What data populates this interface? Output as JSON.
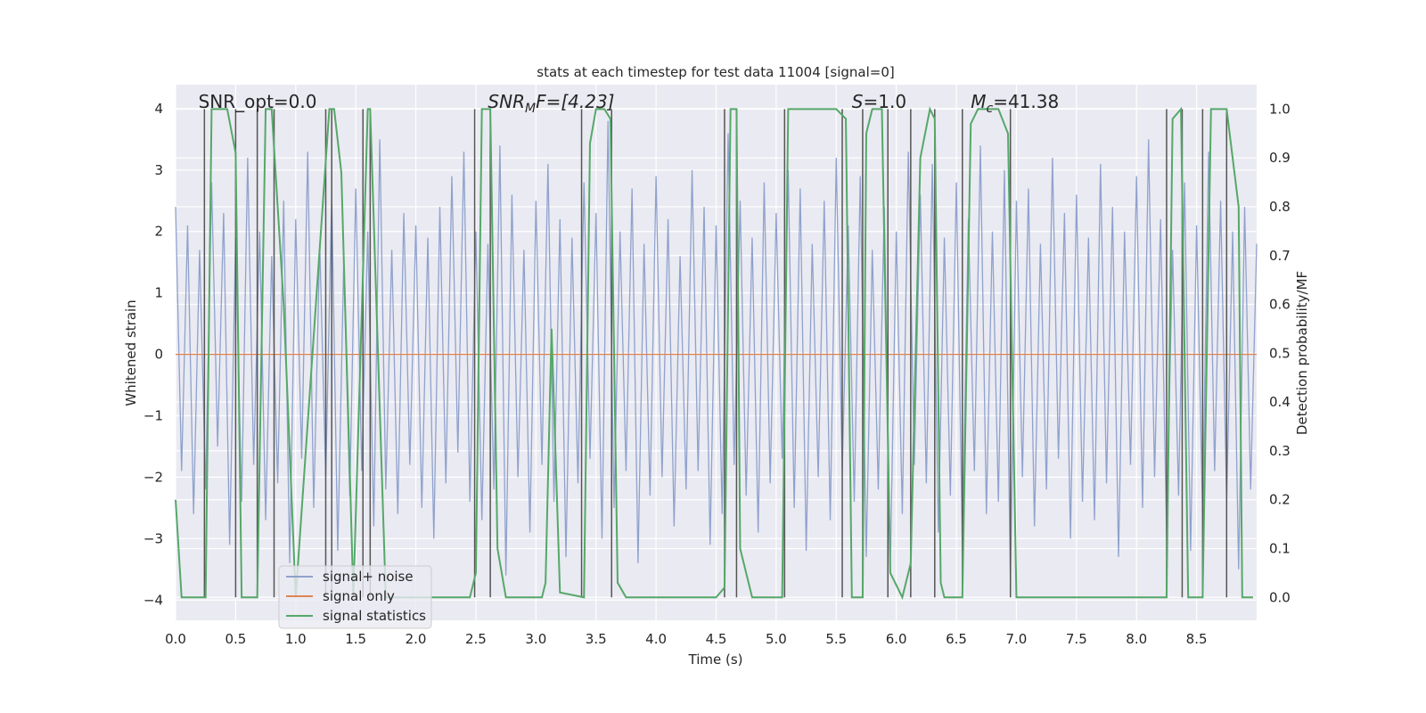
{
  "chart_data": {
    "type": "line",
    "title": "stats at each timestep for test data 11004 [signal=0]",
    "xlabel": "Time (s)",
    "ylabel": "Whitened strain",
    "y2label": "Detection probability/MF",
    "annotations": [
      {
        "text": "SNR_opt=0.0"
      },
      {
        "text": "SNR",
        "sub": "M",
        "rest": "F=[4.23]"
      },
      {
        "text": "S",
        "rest": "=1.0"
      },
      {
        "text": "M",
        "sub": "c",
        "rest": "=41.38"
      }
    ],
    "xlim": [
      0,
      9
    ],
    "ylim": [
      -4.33,
      4.39
    ],
    "y2lim": [
      -0.047,
      1.05
    ],
    "xticks": [
      {
        "value": 0,
        "label": "0.0"
      },
      0.5,
      {
        "value": 1,
        "label": "1.0"
      },
      1.5,
      {
        "value": 2,
        "label": "2.0"
      },
      2.5,
      {
        "value": 3,
        "label": "3.0"
      },
      3.5,
      {
        "value": 4,
        "label": "4.0"
      },
      4.5,
      {
        "value": 5,
        "label": "5.0"
      },
      5.5,
      {
        "value": 6,
        "label": "6.0"
      },
      6.5,
      {
        "value": 7,
        "label": "7.0"
      },
      7.5,
      {
        "value": 8,
        "label": "8.0"
      },
      8.5
    ],
    "yticks": [
      {
        "value": -4,
        "label": "−4"
      },
      {
        "value": -3,
        "label": "−3"
      },
      {
        "value": -2,
        "label": "−2"
      },
      {
        "value": -1,
        "label": "−1"
      },
      0,
      1,
      2,
      3,
      4
    ],
    "y2ticks": [
      {
        "value": 0,
        "label": "0.0"
      },
      0.1,
      0.2,
      0.3,
      0.4,
      0.5,
      0.6,
      0.7,
      0.8,
      0.9,
      {
        "value": 1,
        "label": "1.0"
      }
    ],
    "grid": true,
    "legend": "lower left",
    "series": [
      {
        "name": "signal+ noise",
        "color": "#8fa2cc",
        "x": [
          0,
          0.05,
          0.1,
          0.15,
          0.2,
          0.25,
          0.3,
          0.35,
          0.4,
          0.45,
          0.5,
          0.55,
          0.6,
          0.65,
          0.7,
          0.75,
          0.8,
          0.85,
          0.9,
          0.95,
          1,
          1.05,
          1.1,
          1.15,
          1.2,
          1.25,
          1.3,
          1.35,
          1.4,
          1.45,
          1.5,
          1.55,
          1.6,
          1.65,
          1.7,
          1.75,
          1.8,
          1.85,
          1.9,
          1.95,
          2,
          2.05,
          2.1,
          2.15,
          2.2,
          2.25,
          2.3,
          2.35,
          2.4,
          2.45,
          2.5,
          2.55,
          2.6,
          2.65,
          2.7,
          2.75,
          2.8,
          2.85,
          2.9,
          2.95,
          3,
          3.05,
          3.1,
          3.15,
          3.2,
          3.25,
          3.3,
          3.35,
          3.4,
          3.45,
          3.5,
          3.55,
          3.6,
          3.65,
          3.7,
          3.75,
          3.8,
          3.85,
          3.9,
          3.95,
          4,
          4.05,
          4.1,
          4.15,
          4.2,
          4.25,
          4.3,
          4.35,
          4.4,
          4.45,
          4.5,
          4.55,
          4.6,
          4.65,
          4.7,
          4.75,
          4.8,
          4.85,
          4.9,
          4.95,
          5,
          5.05,
          5.1,
          5.15,
          5.2,
          5.25,
          5.3,
          5.35,
          5.4,
          5.45,
          5.5,
          5.55,
          5.6,
          5.65,
          5.7,
          5.75,
          5.8,
          5.85,
          5.9,
          5.95,
          6,
          6.05,
          6.1,
          6.15,
          6.2,
          6.25,
          6.3,
          6.35,
          6.4,
          6.45,
          6.5,
          6.55,
          6.6,
          6.65,
          6.7,
          6.75,
          6.8,
          6.85,
          6.9,
          6.95,
          7,
          7.05,
          7.1,
          7.15,
          7.2,
          7.25,
          7.3,
          7.35,
          7.4,
          7.45,
          7.5,
          7.55,
          7.6,
          7.65,
          7.7,
          7.75,
          7.8,
          7.85,
          7.9,
          7.95,
          8,
          8.05,
          8.1,
          8.15,
          8.2,
          8.25,
          8.3,
          8.35,
          8.4,
          8.45,
          8.5,
          8.55,
          8.6,
          8.65,
          8.7,
          8.75,
          8.8,
          8.85,
          8.9,
          8.95,
          9
        ],
        "values": [
          2.4,
          -1.9,
          2.1,
          -2.6,
          1.7,
          -2.2,
          2.8,
          -1.5,
          2.3,
          -3.1,
          1.9,
          -2.4,
          3.2,
          -1.8,
          2.0,
          -2.7,
          1.6,
          -2.1,
          2.5,
          -3.4,
          2.2,
          -1.7,
          3.3,
          -2.5,
          1.8,
          -2.0,
          2.6,
          -3.2,
          1.5,
          -2.3,
          2.7,
          -1.9,
          2.0,
          -2.8,
          3.5,
          -2.2,
          1.7,
          -2.6,
          2.3,
          -1.8,
          2.1,
          -2.5,
          1.9,
          -3.0,
          2.4,
          -2.1,
          2.9,
          -1.6,
          3.3,
          -2.4,
          2.0,
          -2.7,
          1.8,
          -2.2,
          3.4,
          -3.6,
          2.6,
          -2.0,
          1.7,
          -2.9,
          2.5,
          -1.8,
          3.1,
          -2.4,
          2.2,
          -3.3,
          1.9,
          -2.1,
          2.8,
          -1.7,
          2.3,
          -3.0,
          3.8,
          -2.5,
          2.0,
          -1.9,
          2.7,
          -3.4,
          1.8,
          -2.3,
          2.9,
          -2.0,
          2.2,
          -2.8,
          1.6,
          -2.2,
          3.0,
          -1.9,
          2.4,
          -3.1,
          2.1,
          -2.6,
          3.6,
          -1.8,
          2.5,
          -2.3,
          1.9,
          -2.9,
          2.8,
          -2.1,
          2.3,
          -1.7,
          3.0,
          -2.5,
          2.7,
          -3.2,
          1.8,
          -2.0,
          2.5,
          -2.7,
          3.2,
          -1.9,
          2.1,
          -2.4,
          2.9,
          -3.3,
          1.7,
          -2.2,
          2.4,
          -3.5,
          2.0,
          -2.6,
          3.3,
          -1.8,
          2.6,
          -2.1,
          3.1,
          -2.9,
          1.9,
          -2.3,
          2.8,
          -3.1,
          2.2,
          -1.9,
          3.4,
          -2.6,
          2.0,
          -2.4,
          3.0,
          -3.7,
          2.5,
          -2.0,
          2.7,
          -2.8,
          1.8,
          -2.2,
          3.2,
          -1.7,
          2.3,
          -3.0,
          2.6,
          -2.4,
          1.9,
          -2.7,
          3.1,
          -2.1,
          2.4,
          -3.3,
          2.0,
          -1.8,
          2.9,
          -2.5,
          3.5,
          -2.0,
          2.2,
          -2.9,
          1.7,
          -2.3,
          2.8,
          -3.2,
          2.1,
          -2.6,
          3.3,
          -1.9,
          2.5,
          -2.4,
          2.0,
          -3.5,
          2.4,
          -2.2,
          1.8
        ]
      },
      {
        "name": "signal only",
        "color": "#dd8452",
        "x": [
          0,
          9
        ],
        "values": [
          0,
          0
        ]
      },
      {
        "name": "signal statistics",
        "color": "#55a868",
        "axis": "y2",
        "x": [
          0,
          0.05,
          0.25,
          0.3,
          0.43,
          0.5,
          0.55,
          0.68,
          0.75,
          0.8,
          0.9,
          1.0,
          1.28,
          1.32,
          1.38,
          1.48,
          1.6,
          1.62,
          1.75,
          2.45,
          2.5,
          2.55,
          2.62,
          2.68,
          2.75,
          3.05,
          3.08,
          3.13,
          3.2,
          3.4,
          3.45,
          3.5,
          3.57,
          3.62,
          3.68,
          3.75,
          4.5,
          4.57,
          4.62,
          4.67,
          4.7,
          4.8,
          5.05,
          5.1,
          5.5,
          5.58,
          5.63,
          5.72,
          5.75,
          5.8,
          5.88,
          5.95,
          6.05,
          6.12,
          6.2,
          6.28,
          6.32,
          6.37,
          6.4,
          6.55,
          6.62,
          6.68,
          6.85,
          6.93,
          7.0,
          8.25,
          8.3,
          8.37,
          8.43,
          8.55,
          8.62,
          8.75,
          8.85,
          8.88,
          8.97
        ],
        "values": [
          0.2,
          0.0,
          0.0,
          1.0,
          1.0,
          0.91,
          0.0,
          0.0,
          1.0,
          1.0,
          0.6,
          0.0,
          1.0,
          1.0,
          0.87,
          0.0,
          1.0,
          1.0,
          0.0,
          0.0,
          0.05,
          1.0,
          1.0,
          0.1,
          0.0,
          0.0,
          0.03,
          0.55,
          0.01,
          0.0,
          0.93,
          1.0,
          1.0,
          0.98,
          0.03,
          0.0,
          0.0,
          0.02,
          1.0,
          1.0,
          0.1,
          0.0,
          0.0,
          1.0,
          1.0,
          0.98,
          0.0,
          0.0,
          0.95,
          1.0,
          1.0,
          0.05,
          0.0,
          0.07,
          0.9,
          1.0,
          0.98,
          0.03,
          0.0,
          0.0,
          0.97,
          1.0,
          1.0,
          0.95,
          0.0,
          0.0,
          0.98,
          1.0,
          0.0,
          0.0,
          1.0,
          1.0,
          0.8,
          0.0,
          0.0
        ]
      }
    ],
    "markers": {
      "color": "#555555",
      "x": [
        0.24,
        0.5,
        0.68,
        0.82,
        1.25,
        1.3,
        1.56,
        1.62,
        2.49,
        2.62,
        3.38,
        3.63,
        4.57,
        4.67,
        5.07,
        5.55,
        5.72,
        5.93,
        6.12,
        6.32,
        6.55,
        6.95,
        8.25,
        8.38,
        8.55,
        8.75
      ]
    }
  }
}
